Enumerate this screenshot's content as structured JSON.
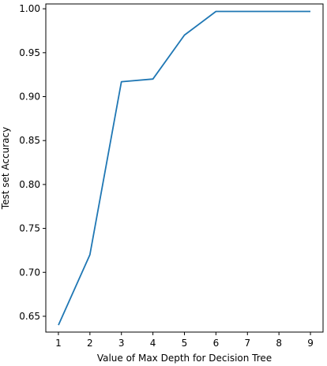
{
  "chart_data": {
    "type": "line",
    "title": "",
    "xlabel": "Value of Max Depth for Decision Tree",
    "ylabel": "Test set Accuracy",
    "x": [
      1,
      2,
      3,
      4,
      5,
      6,
      7,
      8,
      9
    ],
    "series": [
      {
        "values": [
          0.64,
          0.72,
          0.917,
          0.92,
          0.97,
          0.997,
          0.997,
          0.997,
          0.997
        ],
        "color": "#1f77b4"
      }
    ],
    "xlim": [
      0.6,
      9.4
    ],
    "ylim": [
      0.632,
      1.0055
    ],
    "xticks": [
      1,
      2,
      3,
      4,
      5,
      6,
      7,
      8,
      9
    ],
    "xtick_labels": [
      "1",
      "2",
      "3",
      "4",
      "5",
      "6",
      "7",
      "8",
      "9"
    ],
    "yticks": [
      0.65,
      0.7,
      0.75,
      0.8,
      0.85,
      0.9,
      0.95,
      1.0
    ],
    "ytick_labels": [
      "0.65",
      "0.70",
      "0.75",
      "0.80",
      "0.85",
      "0.90",
      "0.95",
      "1.00"
    ],
    "grid": false,
    "legend": "none"
  }
}
